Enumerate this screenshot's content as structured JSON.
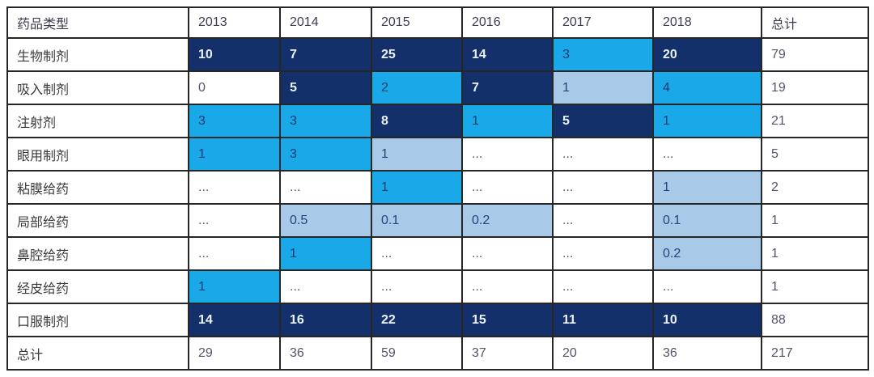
{
  "chart_data": {
    "type": "heatmap",
    "row_header_label": "药品类型",
    "columns": [
      "2013",
      "2014",
      "2015",
      "2016",
      "2017",
      "2018",
      "总计"
    ],
    "rows": [
      {
        "label": "生物制剂",
        "values": [
          "10",
          "7",
          "25",
          "14",
          "3",
          "20",
          "79"
        ],
        "colors": [
          "dark",
          "dark",
          "dark",
          "dark",
          "cyan",
          "dark",
          "none"
        ]
      },
      {
        "label": "吸入制剂",
        "values": [
          "0",
          "5",
          "2",
          "7",
          "1",
          "4",
          "19"
        ],
        "colors": [
          "none",
          "dark",
          "cyan",
          "dark",
          "pale",
          "cyan",
          "none"
        ]
      },
      {
        "label": "注射剂",
        "values": [
          "3",
          "3",
          "8",
          "1",
          "5",
          "1",
          "21"
        ],
        "colors": [
          "cyan",
          "cyan",
          "dark",
          "cyan",
          "dark",
          "cyan",
          "none"
        ]
      },
      {
        "label": "眼用制剂",
        "values": [
          "1",
          "3",
          "1",
          "...",
          "...",
          "...",
          "5"
        ],
        "colors": [
          "cyan",
          "cyan",
          "pale",
          "none",
          "none",
          "none",
          "none"
        ]
      },
      {
        "label": "粘膜给药",
        "values": [
          "...",
          "...",
          "1",
          "...",
          "...",
          "1",
          "2"
        ],
        "colors": [
          "none",
          "none",
          "cyan",
          "none",
          "none",
          "pale",
          "none"
        ]
      },
      {
        "label": "局部给药",
        "values": [
          "...",
          "0.5",
          "0.1",
          "0.2",
          "...",
          "0.1",
          "1"
        ],
        "colors": [
          "none",
          "pale",
          "pale",
          "pale",
          "none",
          "pale",
          "none"
        ]
      },
      {
        "label": "鼻腔给药",
        "values": [
          "...",
          "1",
          "...",
          "...",
          "...",
          "0.2",
          "1"
        ],
        "colors": [
          "none",
          "cyan",
          "none",
          "none",
          "none",
          "pale",
          "none"
        ]
      },
      {
        "label": "经皮给药",
        "values": [
          "1",
          "...",
          "...",
          "...",
          "...",
          "...",
          "1"
        ],
        "colors": [
          "cyan",
          "none",
          "none",
          "none",
          "none",
          "none",
          "none"
        ]
      },
      {
        "label": "口服制剂",
        "values": [
          "14",
          "16",
          "22",
          "15",
          "11",
          "10",
          "88"
        ],
        "colors": [
          "dark",
          "dark",
          "dark",
          "dark",
          "dark",
          "dark",
          "none"
        ]
      },
      {
        "label": "总计",
        "values": [
          "29",
          "36",
          "59",
          "37",
          "20",
          "36",
          "217"
        ],
        "colors": [
          "none",
          "none",
          "none",
          "none",
          "none",
          "none",
          "none"
        ]
      }
    ],
    "legend": {
      "cell_color_dark": "#14306b",
      "cell_color_cyan": "#19a8e8",
      "cell_color_pale": "#a9c9e8",
      "cell_color_none": "#ffffff"
    }
  }
}
